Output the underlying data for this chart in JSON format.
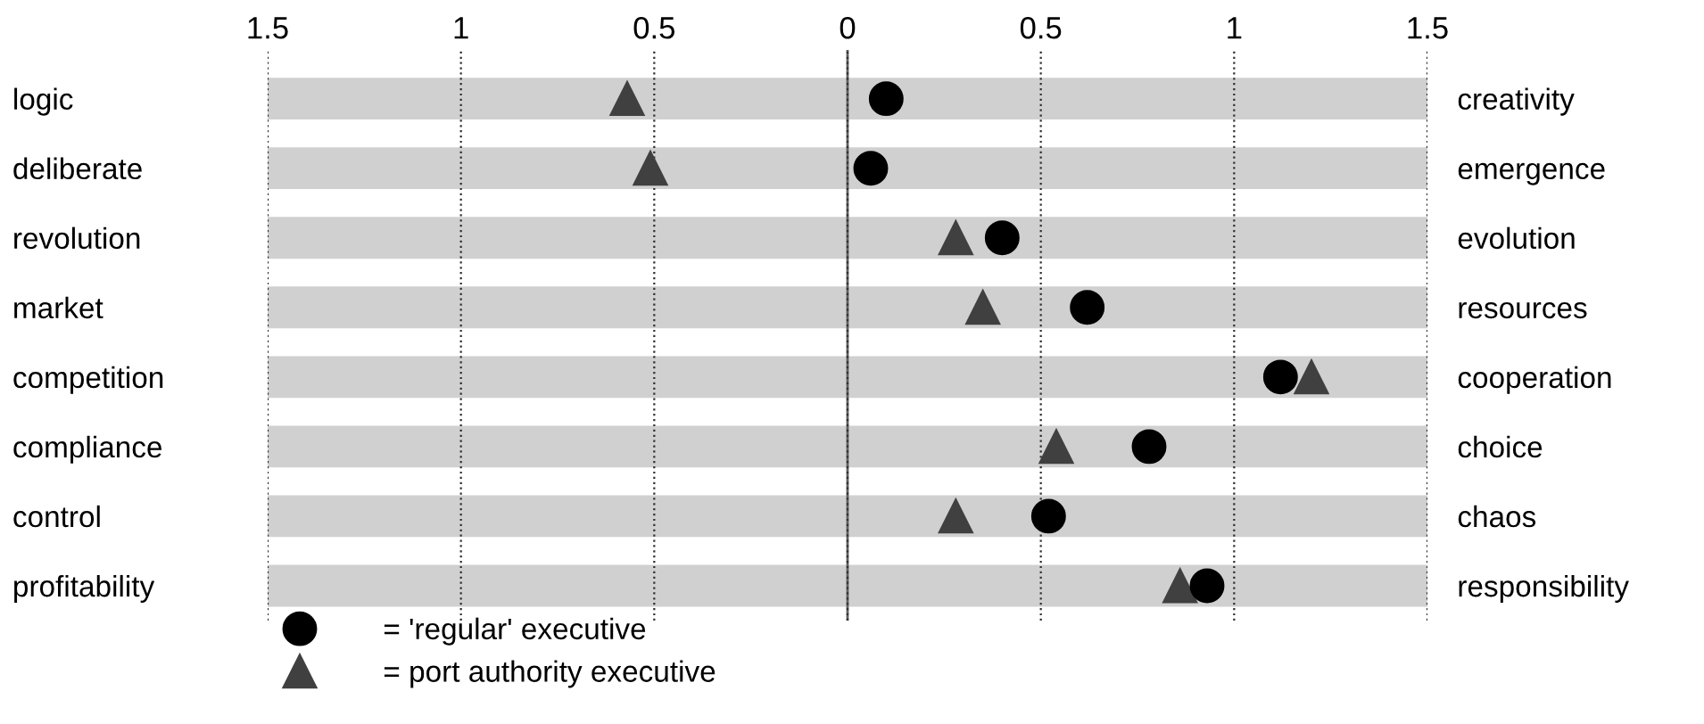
{
  "chart_data": {
    "type": "scatter",
    "orientation": "horizontal",
    "categories": [
      "logic",
      "deliberate",
      "revolution",
      "market",
      "competition",
      "compliance",
      "control",
      "profitability"
    ],
    "y2_categories": [
      "creativity",
      "emergence",
      "evolution",
      "resources",
      "cooperation",
      "choice",
      "chaos",
      "responsibility"
    ],
    "series": [
      {
        "name": "= port authority executive",
        "color": "#404040",
        "marker": "triangle",
        "values": [
          -0.57,
          -0.51,
          0.28,
          0.35,
          1.2,
          0.54,
          0.28,
          0.86
        ]
      },
      {
        "name": "= 'regular' executive",
        "color": "#000000",
        "marker": "circle",
        "values": [
          0.1,
          0.06,
          0.4,
          0.62,
          1.12,
          0.78,
          0.52,
          0.93
        ]
      }
    ],
    "xlim": [
      -1.5,
      1.5
    ],
    "xticks": [
      {
        "value": -1.5,
        "label": "1.5"
      },
      {
        "value": -1,
        "label": "1"
      },
      {
        "value": -0.5,
        "label": "0.5"
      },
      0,
      0.5,
      1,
      1.5
    ],
    "grid": "x",
    "line_style": "dotted",
    "ref_lines": [
      {
        "axis": "x",
        "value": 0,
        "line_style": "solid",
        "color": "#606060"
      }
    ],
    "legend": "bottom left"
  }
}
